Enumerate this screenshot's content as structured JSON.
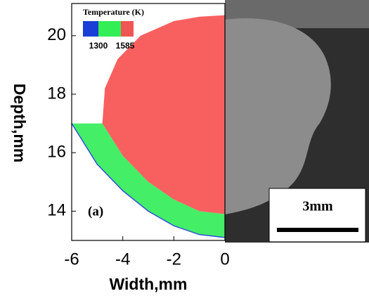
{
  "chart_data": {
    "type": "contour",
    "xlabel": "Width,mm",
    "ylabel": "Depth,mm",
    "annotation": "(a)",
    "scale_bar": "3mm",
    "xlim": [
      -6,
      0
    ],
    "ylim": [
      13,
      21.1
    ],
    "xticks": [
      -6,
      -4,
      -2,
      0
    ],
    "yticks": [
      14,
      16,
      18,
      20
    ],
    "colorbar": {
      "title": "Temperature (K)",
      "colors": [
        "#1a3fd6",
        "#33ee55",
        "#f05555"
      ],
      "ticks": [
        1300,
        1585
      ]
    },
    "regions": [
      {
        "color": "#44ee66",
        "x": [
          -6,
          -4.8,
          -4,
          -3,
          -2,
          -1,
          0,
          0,
          -1,
          -2,
          -3,
          -4,
          -5
        ],
        "y": [
          17,
          17,
          15.9,
          15.0,
          14.4,
          14.0,
          13.9,
          13.1,
          13.2,
          13.5,
          14.0,
          14.7,
          15.6
        ]
      },
      {
        "color": "#f86060",
        "x": [
          -4.8,
          -4.7,
          -4.2,
          -3.3,
          -2,
          -1,
          0,
          0,
          -1,
          -2,
          -3,
          -4
        ],
        "y": [
          17,
          18.2,
          19.2,
          20.0,
          20.5,
          20.65,
          20.7,
          13.9,
          14.0,
          14.4,
          15.0,
          15.9
        ]
      }
    ],
    "boundary": {
      "color": "#3050e0",
      "x": [
        -6,
        -5,
        -4,
        -3,
        -2,
        -1,
        0
      ],
      "y": [
        17,
        15.6,
        14.7,
        14.0,
        13.5,
        13.2,
        13.1
      ]
    }
  }
}
